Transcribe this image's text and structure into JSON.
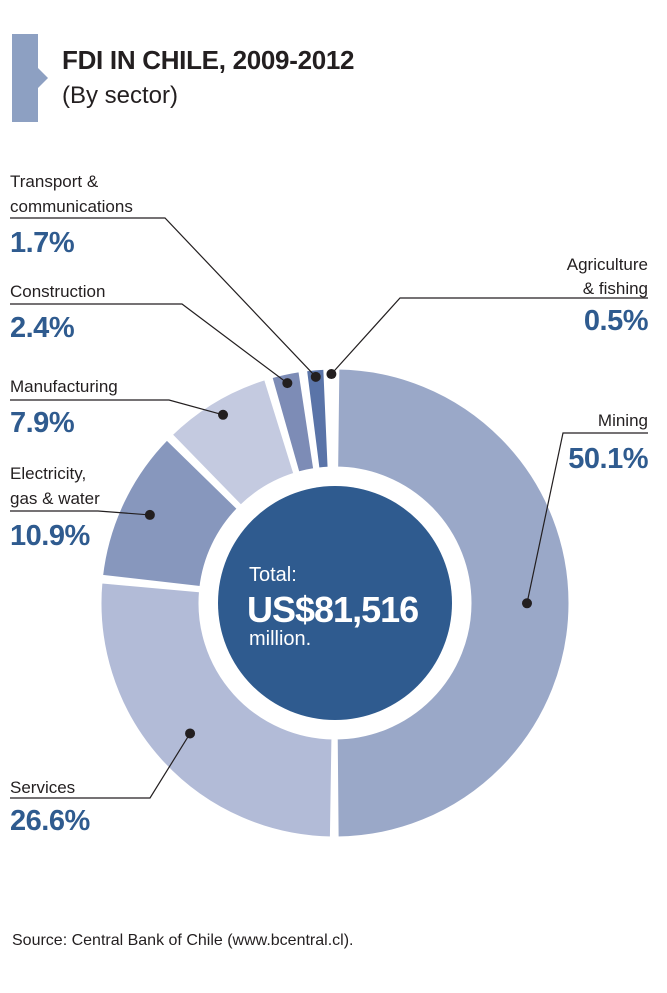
{
  "header": {
    "title": "FDI IN CHILE, 2009-2012",
    "subtitle": "(By sector)"
  },
  "center": {
    "line1": "Total:",
    "line2": "US$81,516",
    "line3": "million."
  },
  "source": "Source: Central Bank of Chile (www.bcentral.cl).",
  "colors": {
    "center": "#2f5b8f",
    "label_value": "#2f5b8f",
    "accent_tab": "#8da0c2"
  },
  "chart_data": {
    "type": "pie",
    "variant": "donut",
    "title": "FDI IN CHILE, 2009-2012",
    "subtitle": "(By sector)",
    "unit": "%",
    "total_label": "US$81,516 million.",
    "slices": [
      {
        "label": "Mining",
        "lines": [
          "Mining"
        ],
        "value": 50.1,
        "display": "50.1%",
        "color": "#9aa8c8"
      },
      {
        "label": "Services",
        "lines": [
          "Services"
        ],
        "value": 26.6,
        "display": "26.6%",
        "color": "#b2bbd7"
      },
      {
        "label": "Electricity, gas & water",
        "lines": [
          "Electricity,",
          "gas & water"
        ],
        "value": 10.9,
        "display": "10.9%",
        "color": "#8797bd"
      },
      {
        "label": "Manufacturing",
        "lines": [
          "Manufacturing"
        ],
        "value": 7.9,
        "display": "7.9%",
        "color": "#c4cae0"
      },
      {
        "label": "Construction",
        "lines": [
          "Construction"
        ],
        "value": 2.4,
        "display": "2.4%",
        "color": "#7d8cb6"
      },
      {
        "label": "Transport & communications",
        "lines": [
          "Transport &",
          "communications"
        ],
        "value": 1.7,
        "display": "1.7%",
        "color": "#5a74a8"
      },
      {
        "label": "Agriculture & fishing",
        "lines": [
          "Agriculture",
          "& fishing"
        ],
        "value": 0.5,
        "display": "0.5%",
        "color": "#3f63a0"
      }
    ]
  }
}
